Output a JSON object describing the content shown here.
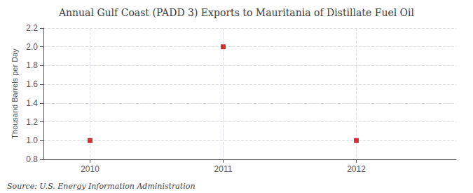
{
  "chart_data": {
    "type": "scatter",
    "title": "Annual Gulf Coast (PADD 3) Exports to Mauritania of Distillate Fuel Oil",
    "ylabel": "Thousand Barrels per Day",
    "annotations": [
      "Source: U.S. Energy Information Administration"
    ],
    "x": [
      2010,
      2011,
      2012
    ],
    "values": [
      1.0,
      2.0,
      1.0
    ],
    "color": "#cc0000",
    "marker": "square",
    "xlim": [
      2009.65,
      2012.75
    ],
    "xticks": [
      2010,
      2011,
      2012
    ],
    "ylim": [
      0.8,
      2.2
    ],
    "yticks": [
      0.8,
      {
        "value": 1.0,
        "label": "1.0"
      },
      1.2,
      1.4,
      1.6,
      1.8,
      {
        "value": 2.0,
        "label": "2.0"
      },
      2.2
    ],
    "grid": true
  }
}
